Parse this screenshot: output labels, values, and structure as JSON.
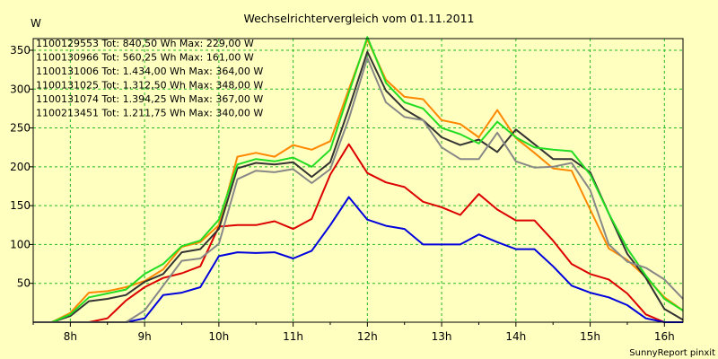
{
  "chart_data": {
    "type": "line",
    "title": "Wechselrichtervergleich vom 01.11.2011",
    "ylabel": "W",
    "xlabel": "",
    "footer": "SunnyReport pinxit",
    "xlim": [
      7.5,
      16.25
    ],
    "ylim": [
      0,
      365
    ],
    "grid": true,
    "legend_position": "top-left",
    "x_ticks": [
      8,
      9,
      10,
      11,
      12,
      13,
      14,
      15,
      16
    ],
    "x_tick_labels": [
      "8h",
      "9h",
      "10h",
      "11h",
      "12h",
      "13h",
      "14h",
      "15h",
      "16h"
    ],
    "y_ticks": [
      50,
      100,
      150,
      200,
      250,
      300,
      350
    ],
    "y_tick_labels": [
      "50",
      "100",
      "150",
      "200",
      "250",
      "300",
      "350"
    ],
    "x": [
      7.5,
      7.75,
      8.0,
      8.25,
      8.5,
      8.75,
      9.0,
      9.25,
      9.5,
      9.75,
      10.0,
      10.25,
      10.5,
      10.75,
      11.0,
      11.25,
      11.5,
      11.75,
      12.0,
      12.25,
      12.5,
      12.75,
      13.0,
      13.25,
      13.5,
      13.75,
      14.0,
      14.25,
      14.5,
      14.75,
      15.0,
      15.25,
      15.5,
      15.75,
      16.0,
      16.25
    ],
    "series": [
      {
        "name": "1100129553",
        "legend": "1100129553 Tot: 840,50 Wh Max: 229,00 W",
        "color": "#dd0000",
        "values": [
          0,
          0,
          0,
          0,
          5,
          28,
          45,
          57,
          63,
          72,
          123,
          125,
          125,
          130,
          120,
          133,
          190,
          229,
          192,
          180,
          174,
          155,
          148,
          138,
          165,
          145,
          131,
          131,
          105,
          75,
          62,
          55,
          37,
          10,
          0,
          0
        ]
      },
      {
        "name": "1100130966",
        "legend": "1100130966 Tot: 560,25 Wh Max: 161,00 W",
        "color": "#0000dd",
        "values": [
          0,
          0,
          0,
          0,
          0,
          0,
          5,
          35,
          38,
          45,
          85,
          90,
          89,
          90,
          82,
          92,
          125,
          161,
          132,
          124,
          120,
          100,
          100,
          100,
          113,
          103,
          94,
          94,
          72,
          47,
          38,
          32,
          22,
          5,
          0,
          0
        ]
      },
      {
        "name": "1100131006",
        "legend": "1100131006 Tot: 1.434,00 Wh Max: 364,00 W",
        "color": "#ff8800",
        "values": [
          0,
          0,
          12,
          38,
          40,
          45,
          53,
          68,
          97,
          103,
          125,
          213,
          218,
          213,
          228,
          222,
          233,
          300,
          364,
          312,
          290,
          287,
          260,
          255,
          238,
          273,
          237,
          218,
          198,
          195,
          145,
          95,
          80,
          58,
          32,
          15
        ]
      },
      {
        "name": "1100131025",
        "legend": "1100131025 Tot: 1.312,50 Wh Max: 348,00 W",
        "color": "#333333",
        "values": [
          0,
          0,
          8,
          27,
          30,
          35,
          52,
          62,
          90,
          94,
          120,
          198,
          205,
          203,
          206,
          187,
          206,
          275,
          348,
          298,
          274,
          260,
          238,
          228,
          235,
          219,
          248,
          229,
          210,
          210,
          193,
          140,
          88,
          57,
          17,
          3
        ]
      },
      {
        "name": "1100131074",
        "legend": "1100131074 Tot: 1.394,25 Wh Max: 367,00 W",
        "color": "#22dd22",
        "values": [
          0,
          0,
          10,
          32,
          37,
          42,
          62,
          75,
          98,
          105,
          132,
          203,
          210,
          207,
          212,
          200,
          222,
          295,
          367,
          308,
          283,
          275,
          250,
          242,
          230,
          258,
          238,
          225,
          222,
          220,
          190,
          140,
          95,
          60,
          30,
          15
        ]
      },
      {
        "name": "1100213451",
        "legend": "1100213451 Tot: 1.211,75 Wh Max: 340,00 W",
        "color": "#888888",
        "values": [
          0,
          0,
          0,
          0,
          0,
          0,
          15,
          47,
          79,
          82,
          101,
          184,
          195,
          193,
          197,
          179,
          197,
          262,
          340,
          283,
          264,
          260,
          225,
          210,
          210,
          244,
          207,
          199,
          200,
          205,
          170,
          100,
          78,
          70,
          55,
          30
        ]
      }
    ]
  }
}
